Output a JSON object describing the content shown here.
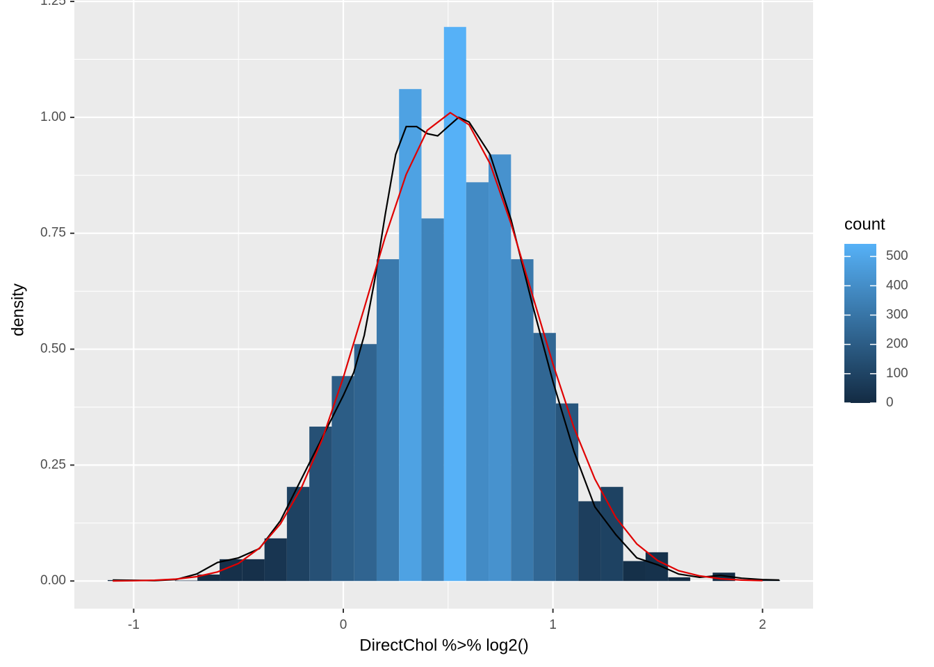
{
  "chart_data": {
    "type": "histogram",
    "x_label": "DirectChol %>% log2()",
    "y_label": "density",
    "xlim": [
      -1.283,
      2.241
    ],
    "ylim": [
      -0.0596,
      1.2531
    ],
    "xticks": [
      -1,
      0,
      1,
      2
    ],
    "yticks": [
      {
        "value": 0,
        "label": "0.00"
      },
      {
        "value": 0.25,
        "label": "0.25"
      },
      {
        "value": 0.5,
        "label": "0.50"
      },
      {
        "value": 0.75,
        "label": "0.75"
      },
      {
        "value": 1,
        "label": "1.00"
      },
      {
        "value": 1.25,
        "label": "1.25"
      }
    ],
    "grid": true,
    "bins": [
      -1.124,
      -1.017,
      -0.91,
      -0.803,
      -0.696,
      -0.59,
      -0.483,
      -0.376,
      -0.269,
      -0.162,
      -0.055,
      0.052,
      0.159,
      0.266,
      0.373,
      0.48,
      0.586,
      0.693,
      0.8,
      0.907,
      1.014,
      1.121,
      1.228,
      1.335,
      1.442,
      1.549,
      1.655,
      1.762,
      1.869,
      1.976,
      2.083
    ],
    "values": [
      0.002,
      0,
      0,
      0.001,
      0.014,
      0.047,
      0.047,
      0.092,
      0.203,
      0.333,
      0.442,
      0.511,
      0.694,
      1.061,
      0.782,
      1.195,
      0.86,
      0.92,
      0.694,
      0.535,
      0.383,
      0.172,
      0.203,
      0.043,
      0.062,
      0.008,
      0,
      0.018,
      0,
      0.002
    ],
    "fill": {
      "title": "count",
      "low": "#132B43",
      "high": "#56B1F7",
      "lim": [
        0,
        543
      ],
      "ticks": [
        0,
        100,
        200,
        300,
        400,
        500
      ]
    },
    "lines": [
      {
        "color": "#000000",
        "x": [
          -1.1,
          -0.9,
          -0.8,
          -0.7,
          -0.6,
          -0.5,
          -0.4,
          -0.3,
          -0.2,
          -0.1,
          0,
          0.05,
          0.1,
          0.15,
          0.2,
          0.25,
          0.3,
          0.35,
          0.4,
          0.45,
          0.5,
          0.55,
          0.6,
          0.7,
          0.8,
          0.9,
          1.0,
          1.1,
          1.2,
          1.3,
          1.4,
          1.5,
          1.6,
          1.7,
          1.8,
          1.9,
          2.0,
          2.08
        ],
        "values": [
          0.002,
          0.001,
          0.003,
          0.015,
          0.04,
          0.05,
          0.07,
          0.13,
          0.22,
          0.31,
          0.4,
          0.45,
          0.53,
          0.65,
          0.79,
          0.92,
          0.98,
          0.98,
          0.965,
          0.96,
          0.98,
          1.0,
          0.99,
          0.92,
          0.78,
          0.6,
          0.43,
          0.28,
          0.16,
          0.1,
          0.05,
          0.035,
          0.015,
          0.008,
          0.012,
          0.006,
          0.003,
          0.002
        ]
      },
      {
        "color": "#e00000",
        "x": [
          -1.1,
          -1.0,
          -0.9,
          -0.8,
          -0.7,
          -0.6,
          -0.5,
          -0.4,
          -0.3,
          -0.2,
          -0.1,
          0,
          0.1,
          0.2,
          0.3,
          0.4,
          0.51,
          0.6,
          0.7,
          0.8,
          0.9,
          1.0,
          1.1,
          1.2,
          1.3,
          1.4,
          1.5,
          1.6,
          1.7,
          1.8,
          1.9,
          2.0
        ],
        "values": [
          0.0002,
          0.0007,
          0.0017,
          0.0041,
          0.0093,
          0.0195,
          0.038,
          0.071,
          0.123,
          0.201,
          0.306,
          0.439,
          0.589,
          0.742,
          0.877,
          0.972,
          1.01,
          0.984,
          0.9,
          0.771,
          0.62,
          0.468,
          0.331,
          0.22,
          0.137,
          0.08,
          0.044,
          0.022,
          0.011,
          0.0048,
          0.002,
          0.0008
        ]
      }
    ]
  }
}
